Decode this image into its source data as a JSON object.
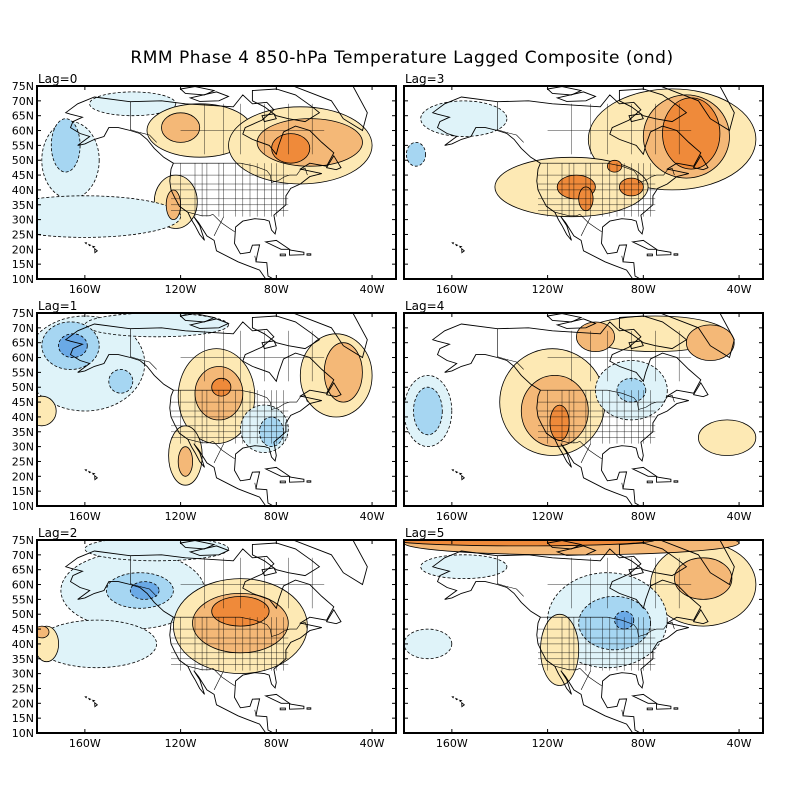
{
  "title": "RMM Phase 4 850-hPa Temperature Lagged Composite (ond)",
  "lat_labels": [
    "75N",
    "70N",
    "65N",
    "60N",
    "55N",
    "50N",
    "45N",
    "40N",
    "35N",
    "30N",
    "25N",
    "20N",
    "15N",
    "10N"
  ],
  "lon_labels": [
    "160W",
    "120W",
    "80W",
    "40W"
  ],
  "colors": {
    "warm1": "#fde9b4",
    "warm2": "#f4b877",
    "warm3": "#ef8a3a",
    "warm4": "#e8411f",
    "cool1": "#dff3f9",
    "cool2": "#a6d6f2",
    "cool3": "#6aa9e6",
    "land": "#ffffff",
    "coast": "#000000"
  },
  "panels": [
    {
      "lag": "Lag=0",
      "features": [
        {
          "type": "cool",
          "level": 1,
          "lon": -166,
          "lat": 50,
          "rx": 12,
          "ry": 13
        },
        {
          "type": "cool",
          "level": 2,
          "lon": -168,
          "lat": 55,
          "rx": 6,
          "ry": 9
        },
        {
          "type": "cool",
          "level": 1,
          "lon": -140,
          "lat": 69,
          "rx": 18,
          "ry": 4
        },
        {
          "type": "warm",
          "level": 1,
          "lon": -112,
          "lat": 60,
          "rx": 22,
          "ry": 9
        },
        {
          "type": "warm",
          "level": 2,
          "lon": -120,
          "lat": 61,
          "rx": 8,
          "ry": 5
        },
        {
          "type": "warm",
          "level": 1,
          "lon": -70,
          "lat": 55,
          "rx": 30,
          "ry": 13
        },
        {
          "type": "warm",
          "level": 2,
          "lon": -66,
          "lat": 56,
          "rx": 22,
          "ry": 8
        },
        {
          "type": "warm",
          "level": 3,
          "lon": -74,
          "lat": 54,
          "rx": 8,
          "ry": 5
        },
        {
          "type": "warm",
          "level": 1,
          "lon": -122,
          "lat": 36,
          "rx": 9,
          "ry": 9
        },
        {
          "type": "warm",
          "level": 2,
          "lon": -123,
          "lat": 35,
          "rx": 3,
          "ry": 5
        },
        {
          "type": "cool",
          "level": 1,
          "lon": -160,
          "lat": 31,
          "rx": 40,
          "ry": 7
        }
      ]
    },
    {
      "lag": "Lag=3",
      "features": [
        {
          "type": "warm",
          "level": 1,
          "lon": -68,
          "lat": 57,
          "rx": 35,
          "ry": 17
        },
        {
          "type": "warm",
          "level": 2,
          "lon": -62,
          "lat": 58,
          "rx": 18,
          "ry": 14
        },
        {
          "type": "warm",
          "level": 3,
          "lon": -60,
          "lat": 59,
          "rx": 12,
          "ry": 12
        },
        {
          "type": "warm",
          "level": 1,
          "lon": -110,
          "lat": 41,
          "rx": 32,
          "ry": 10
        },
        {
          "type": "warm",
          "level": 3,
          "lon": -108,
          "lat": 41,
          "rx": 8,
          "ry": 4
        },
        {
          "type": "warm",
          "level": 3,
          "lon": -104,
          "lat": 37,
          "rx": 3,
          "ry": 4
        },
        {
          "type": "warm",
          "level": 3,
          "lon": -85,
          "lat": 41,
          "rx": 5,
          "ry": 3
        },
        {
          "type": "warm",
          "level": 3,
          "lon": -92,
          "lat": 48,
          "rx": 3,
          "ry": 2
        },
        {
          "type": "cool",
          "level": 1,
          "lon": -155,
          "lat": 64,
          "rx": 18,
          "ry": 6
        },
        {
          "type": "cool",
          "level": 2,
          "lon": -175,
          "lat": 52,
          "rx": 4,
          "ry": 4
        }
      ]
    },
    {
      "lag": "Lag=1",
      "features": [
        {
          "type": "cool",
          "level": 1,
          "lon": -160,
          "lat": 58,
          "rx": 25,
          "ry": 16
        },
        {
          "type": "cool",
          "level": 2,
          "lon": -166,
          "lat": 64,
          "rx": 12,
          "ry": 8
        },
        {
          "type": "cool",
          "level": 3,
          "lon": -165,
          "lat": 64,
          "rx": 6,
          "ry": 4
        },
        {
          "type": "cool",
          "level": 2,
          "lon": -145,
          "lat": 52,
          "rx": 5,
          "ry": 4
        },
        {
          "type": "cool",
          "level": 1,
          "lon": -130,
          "lat": 71,
          "rx": 30,
          "ry": 4
        },
        {
          "type": "warm",
          "level": 1,
          "lon": -105,
          "lat": 47,
          "rx": 16,
          "ry": 16
        },
        {
          "type": "warm",
          "level": 2,
          "lon": -104,
          "lat": 48,
          "rx": 10,
          "ry": 9
        },
        {
          "type": "warm",
          "level": 3,
          "lon": -103,
          "lat": 50,
          "rx": 4,
          "ry": 3
        },
        {
          "type": "warm",
          "level": 1,
          "lon": -118,
          "lat": 27,
          "rx": 7,
          "ry": 10
        },
        {
          "type": "warm",
          "level": 2,
          "lon": -118,
          "lat": 25,
          "rx": 3,
          "ry": 5
        },
        {
          "type": "cool",
          "level": 1,
          "lon": -85,
          "lat": 36,
          "rx": 10,
          "ry": 8
        },
        {
          "type": "cool",
          "level": 2,
          "lon": -82,
          "lat": 35,
          "rx": 5,
          "ry": 5
        },
        {
          "type": "warm",
          "level": 1,
          "lon": -55,
          "lat": 54,
          "rx": 15,
          "ry": 14
        },
        {
          "type": "warm",
          "level": 2,
          "lon": -52,
          "lat": 55,
          "rx": 8,
          "ry": 10
        },
        {
          "type": "warm",
          "level": 1,
          "lon": -178,
          "lat": 42,
          "rx": 6,
          "ry": 5
        }
      ]
    },
    {
      "lag": "Lag=4",
      "features": [
        {
          "type": "warm",
          "level": 1,
          "lon": -118,
          "lat": 45,
          "rx": 22,
          "ry": 18
        },
        {
          "type": "warm",
          "level": 2,
          "lon": -117,
          "lat": 42,
          "rx": 14,
          "ry": 12
        },
        {
          "type": "warm",
          "level": 3,
          "lon": -115,
          "lat": 38,
          "rx": 4,
          "ry": 6
        },
        {
          "type": "warm",
          "level": 1,
          "lon": -75,
          "lat": 68,
          "rx": 30,
          "ry": 6
        },
        {
          "type": "warm",
          "level": 2,
          "lon": -100,
          "lat": 67,
          "rx": 8,
          "ry": 5
        },
        {
          "type": "warm",
          "level": 2,
          "lon": -52,
          "lat": 65,
          "rx": 10,
          "ry": 6
        },
        {
          "type": "cool",
          "level": 1,
          "lon": -85,
          "lat": 49,
          "rx": 15,
          "ry": 10
        },
        {
          "type": "cool",
          "level": 2,
          "lon": -85,
          "lat": 49,
          "rx": 6,
          "ry": 4
        },
        {
          "type": "cool",
          "level": 1,
          "lon": -170,
          "lat": 42,
          "rx": 10,
          "ry": 12
        },
        {
          "type": "cool",
          "level": 2,
          "lon": -170,
          "lat": 42,
          "rx": 6,
          "ry": 8
        },
        {
          "type": "warm",
          "level": 1,
          "lon": -45,
          "lat": 33,
          "rx": 12,
          "ry": 6
        }
      ]
    },
    {
      "lag": "Lag=2",
      "features": [
        {
          "type": "cool",
          "level": 1,
          "lon": -140,
          "lat": 58,
          "rx": 30,
          "ry": 13
        },
        {
          "type": "cool",
          "level": 2,
          "lon": -137,
          "lat": 58,
          "rx": 14,
          "ry": 6
        },
        {
          "type": "cool",
          "level": 3,
          "lon": -135,
          "lat": 58,
          "rx": 6,
          "ry": 3
        },
        {
          "type": "cool",
          "level": 1,
          "lon": -155,
          "lat": 40,
          "rx": 25,
          "ry": 8
        },
        {
          "type": "warm",
          "level": 1,
          "lon": -95,
          "lat": 46,
          "rx": 28,
          "ry": 16
        },
        {
          "type": "warm",
          "level": 2,
          "lon": -95,
          "lat": 47,
          "rx": 20,
          "ry": 10
        },
        {
          "type": "warm",
          "level": 3,
          "lon": -95,
          "lat": 51,
          "rx": 12,
          "ry": 5
        },
        {
          "type": "warm",
          "level": 1,
          "lon": -176,
          "lat": 40,
          "rx": 5,
          "ry": 6
        },
        {
          "type": "warm",
          "level": 2,
          "lon": -178,
          "lat": 44,
          "rx": 3,
          "ry": 2
        },
        {
          "type": "cool",
          "level": 1,
          "lon": -130,
          "lat": 72,
          "rx": 30,
          "ry": 4
        }
      ]
    },
    {
      "lag": "Lag=5",
      "features": [
        {
          "type": "warm",
          "level": 2,
          "lon": -110,
          "lat": 74,
          "rx": 70,
          "ry": 4
        },
        {
          "type": "warm",
          "level": 3,
          "lon": -130,
          "lat": 75,
          "rx": 55,
          "ry": 2
        },
        {
          "type": "warm",
          "level": 1,
          "lon": -55,
          "lat": 60,
          "rx": 22,
          "ry": 14
        },
        {
          "type": "warm",
          "level": 2,
          "lon": -55,
          "lat": 62,
          "rx": 12,
          "ry": 7
        },
        {
          "type": "cool",
          "level": 1,
          "lon": -95,
          "lat": 48,
          "rx": 25,
          "ry": 16
        },
        {
          "type": "cool",
          "level": 2,
          "lon": -92,
          "lat": 47,
          "rx": 15,
          "ry": 9
        },
        {
          "type": "cool",
          "level": 3,
          "lon": -88,
          "lat": 48,
          "rx": 4,
          "ry": 3
        },
        {
          "type": "warm",
          "level": 1,
          "lon": -115,
          "lat": 38,
          "rx": 8,
          "ry": 12
        },
        {
          "type": "cool",
          "level": 1,
          "lon": -170,
          "lat": 40,
          "rx": 10,
          "ry": 5
        },
        {
          "type": "cool",
          "level": 1,
          "lon": -155,
          "lat": 66,
          "rx": 18,
          "ry": 4
        }
      ]
    }
  ]
}
